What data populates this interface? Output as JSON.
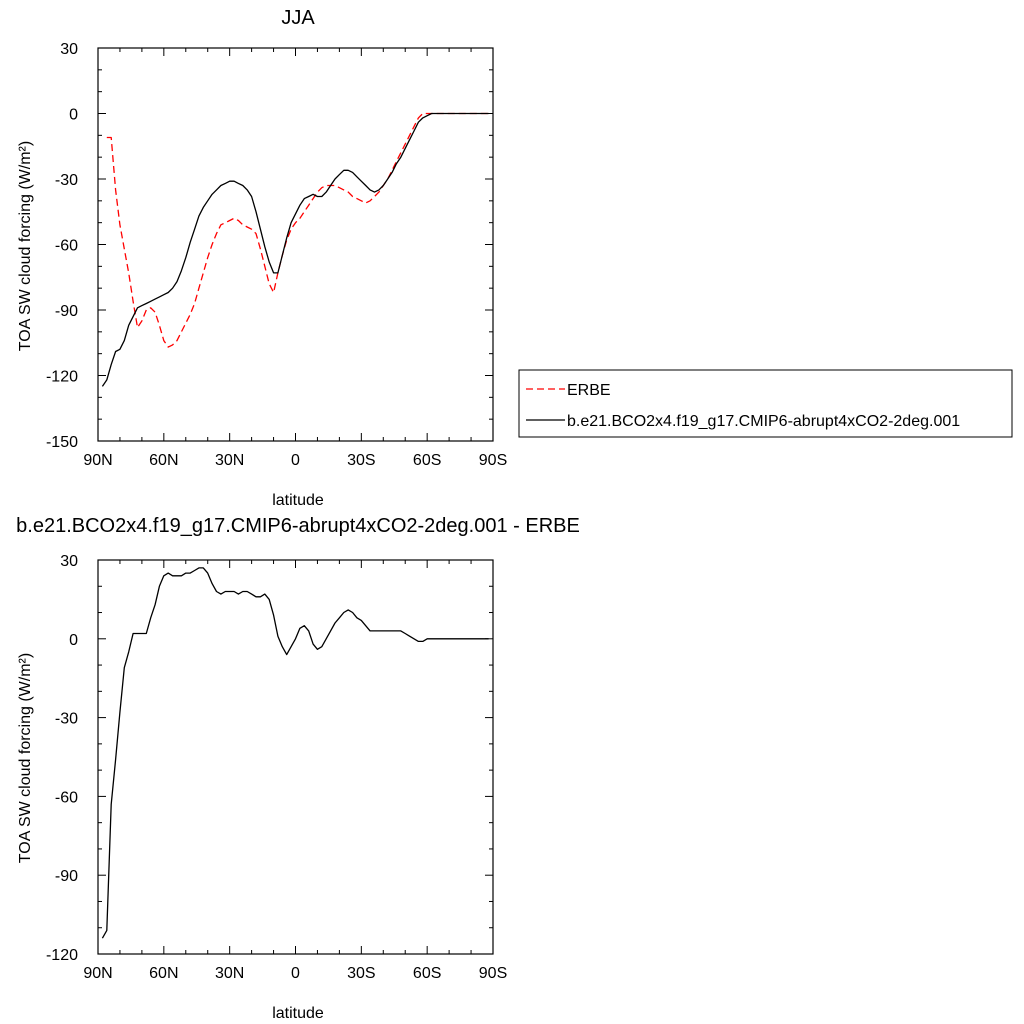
{
  "chart_data": [
    {
      "type": "line",
      "title": "JJA",
      "xlabel": "latitude",
      "ylabel": "TOA SW cloud forcing (W/m²)",
      "xlim": [
        90,
        -90
      ],
      "ylim": [
        -150,
        30
      ],
      "x_tick_labels": [
        "90N",
        "60N",
        "30N",
        "0",
        "30S",
        "60S",
        "90S"
      ],
      "y_ticks": [
        30,
        0,
        -30,
        -60,
        -90,
        -120,
        -150
      ],
      "legend_position": "right",
      "series": [
        {
          "name": "ERBE",
          "color": "#ff0000",
          "dash": "dashed",
          "x": [
            86,
            84,
            82,
            80,
            78,
            76,
            74,
            72,
            70,
            68,
            66,
            64,
            62,
            60,
            58,
            56,
            54,
            52,
            50,
            48,
            46,
            44,
            42,
            40,
            38,
            36,
            34,
            32,
            30,
            28,
            26,
            24,
            22,
            20,
            18,
            16,
            14,
            12,
            10,
            8,
            6,
            4,
            2,
            0,
            -2,
            -4,
            -6,
            -8,
            -10,
            -12,
            -14,
            -16,
            -18,
            -20,
            -22,
            -24,
            -26,
            -28,
            -30,
            -32,
            -34,
            -36,
            -38,
            -40,
            -42,
            -44,
            -46,
            -48,
            -50,
            -52,
            -54,
            -56,
            -58,
            -60,
            -62,
            -64,
            -66,
            -68,
            -70,
            -72,
            -74,
            -76,
            -78,
            -80,
            -82,
            -84,
            -86,
            -88
          ],
          "values": [
            -11,
            -11,
            -35,
            -51,
            -62,
            -73,
            -86,
            -98,
            -95,
            -90,
            -89,
            -91,
            -97,
            -104,
            -107,
            -106,
            -104,
            -100,
            -96,
            -92,
            -87,
            -80,
            -73,
            -66,
            -60,
            -55,
            -51,
            -50,
            -49,
            -48,
            -49,
            -51,
            -52,
            -53,
            -55,
            -62,
            -70,
            -78,
            -82,
            -73,
            -65,
            -58,
            -53,
            -50,
            -48,
            -45,
            -42,
            -39,
            -36,
            -34,
            -33,
            -33,
            -33,
            -34,
            -35,
            -36,
            -38,
            -39,
            -40,
            -41,
            -40,
            -38,
            -36,
            -33,
            -30,
            -26,
            -22,
            -18,
            -14,
            -10,
            -6,
            -2,
            0,
            0,
            0,
            0,
            0,
            0,
            0,
            0,
            0,
            0,
            0,
            0,
            0,
            0,
            0,
            0
          ]
        },
        {
          "name": "b.e21.BCO2x4.f19_g17.CMIP6-abrupt4xCO2-2deg.001",
          "color": "#000000",
          "dash": "solid",
          "x": [
            88,
            86,
            84,
            82,
            80,
            78,
            76,
            74,
            72,
            70,
            68,
            66,
            64,
            62,
            60,
            58,
            56,
            54,
            52,
            50,
            48,
            46,
            44,
            42,
            40,
            38,
            36,
            34,
            32,
            30,
            28,
            26,
            24,
            22,
            20,
            18,
            16,
            14,
            12,
            10,
            8,
            6,
            4,
            2,
            0,
            -2,
            -4,
            -6,
            -8,
            -10,
            -12,
            -14,
            -16,
            -18,
            -20,
            -22,
            -24,
            -26,
            -28,
            -30,
            -32,
            -34,
            -36,
            -38,
            -40,
            -42,
            -44,
            -46,
            -48,
            -50,
            -52,
            -54,
            -56,
            -58,
            -60,
            -62,
            -64,
            -66,
            -68,
            -70,
            -72,
            -74,
            -76,
            -78,
            -80,
            -82,
            -84,
            -86,
            -88
          ],
          "values": [
            -125,
            -122,
            -115,
            -109,
            -108,
            -104,
            -97,
            -93,
            -89,
            -88,
            -87,
            -86,
            -85,
            -84,
            -83,
            -82,
            -80,
            -77,
            -72,
            -66,
            -59,
            -53,
            -47,
            -43,
            -40,
            -37,
            -35,
            -33,
            -32,
            -31,
            -31,
            -32,
            -33,
            -35,
            -38,
            -45,
            -53,
            -61,
            -68,
            -73,
            -73,
            -65,
            -57,
            -50,
            -46,
            -42,
            -39,
            -38,
            -37,
            -38,
            -38,
            -36,
            -33,
            -30,
            -28,
            -26,
            -26,
            -27,
            -29,
            -31,
            -33,
            -35,
            -36,
            -35,
            -33,
            -30,
            -27,
            -23,
            -20,
            -16,
            -12,
            -8,
            -4,
            -2,
            -1,
            0,
            0,
            0,
            0,
            0,
            0,
            0,
            0,
            0,
            0,
            0,
            0,
            0,
            0
          ]
        }
      ]
    },
    {
      "type": "line",
      "title": "b.e21.BCO2x4.f19_g17.CMIP6-abrupt4xCO2-2deg.001 - ERBE",
      "xlabel": "latitude",
      "ylabel": "TOA SW cloud forcing (W/m²)",
      "xlim": [
        90,
        -90
      ],
      "ylim": [
        -120,
        30
      ],
      "x_tick_labels": [
        "90N",
        "60N",
        "30N",
        "0",
        "30S",
        "60S",
        "90S"
      ],
      "y_ticks": [
        30,
        0,
        -30,
        -60,
        -90,
        -120
      ],
      "series": [
        {
          "color": "#000000",
          "dash": "solid",
          "x": [
            88,
            86,
            84,
            82,
            80,
            78,
            76,
            74,
            72,
            70,
            68,
            66,
            64,
            62,
            60,
            58,
            56,
            54,
            52,
            50,
            48,
            46,
            44,
            42,
            40,
            38,
            36,
            34,
            32,
            30,
            28,
            26,
            24,
            22,
            20,
            18,
            16,
            14,
            12,
            10,
            8,
            6,
            4,
            2,
            0,
            -2,
            -4,
            -6,
            -8,
            -10,
            -12,
            -14,
            -16,
            -18,
            -20,
            -22,
            -24,
            -26,
            -28,
            -30,
            -32,
            -34,
            -36,
            -38,
            -40,
            -42,
            -44,
            -46,
            -48,
            -50,
            -52,
            -54,
            -56,
            -58,
            -60,
            -62,
            -64,
            -66,
            -68,
            -70,
            -72,
            -74,
            -76,
            -78,
            -80,
            -82,
            -84,
            -86,
            -88
          ],
          "values": [
            -114,
            -111,
            -63,
            -46,
            -28,
            -11,
            -5,
            2,
            2,
            2,
            2,
            8,
            13,
            20,
            24,
            25,
            24,
            24,
            24,
            25,
            25,
            26,
            27,
            27,
            25,
            21,
            18,
            17,
            18,
            18,
            18,
            17,
            18,
            18,
            17,
            16,
            16,
            17,
            15,
            9,
            1,
            -3,
            -6,
            -3,
            0,
            4,
            5,
            3,
            -2,
            -4,
            -3,
            0,
            3,
            6,
            8,
            10,
            11,
            10,
            8,
            7,
            5,
            3,
            3,
            3,
            3,
            3,
            3,
            3,
            3,
            2,
            1,
            0,
            -1,
            -1,
            0,
            0,
            0,
            0,
            0,
            0,
            0,
            0,
            0,
            0,
            0,
            0,
            0,
            0,
            0
          ]
        }
      ]
    }
  ]
}
